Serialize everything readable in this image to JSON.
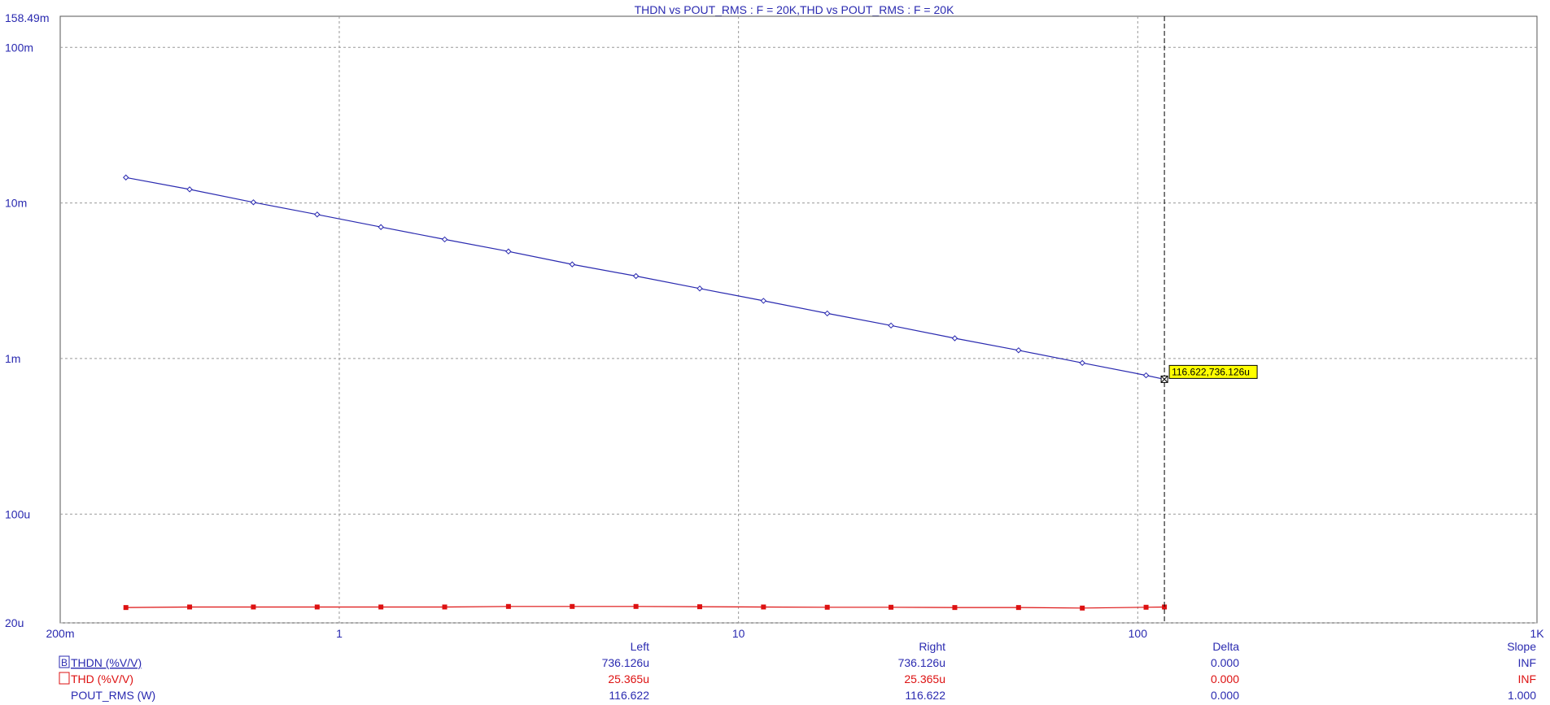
{
  "chart_data": {
    "type": "line",
    "title": "THDN vs POUT_RMS : F = 20K,THD vs POUT_RMS : F = 20K",
    "x_scale": "log",
    "y_scale": "log",
    "xlim": [
      0.2,
      1000
    ],
    "ylim": [
      2e-05,
      0.15849
    ],
    "x_ticks": [
      {
        "value": 0.2,
        "label": "200m"
      },
      {
        "value": 1,
        "label": "1"
      },
      {
        "value": 10,
        "label": "10"
      },
      {
        "value": 100,
        "label": "100"
      },
      {
        "value": 1000,
        "label": "1K"
      }
    ],
    "y_ticks": [
      {
        "value": 2e-05,
        "label": "20u"
      },
      {
        "value": 0.0001,
        "label": "100u"
      },
      {
        "value": 0.001,
        "label": "1m"
      },
      {
        "value": 0.01,
        "label": "10m"
      },
      {
        "value": 0.1,
        "label": "100m"
      }
    ],
    "y_top_label": "158.49m",
    "grid": true,
    "x": [
      0.2921,
      0.4219,
      0.6094,
      0.8803,
      1.2716,
      1.8367,
      2.6531,
      3.8323,
      5.5356,
      7.996,
      11.55,
      16.684,
      24.1,
      34.811,
      50.283,
      72.633,
      104.92,
      116.622
    ],
    "series": [
      {
        "name": "THDN (%V/V)",
        "color": "#2a2ab0",
        "marker": "diamond",
        "values": [
          0.01458,
          0.01223,
          0.0101,
          0.00843,
          0.007,
          0.00583,
          0.00488,
          0.00403,
          0.00339,
          0.00282,
          0.00235,
          0.00195,
          0.00163,
          0.00135,
          0.00113,
          0.000937,
          0.00078,
          0.000736126
        ]
      },
      {
        "name": "THD (%V/V)",
        "color": "#dd1111",
        "marker": "square",
        "values": [
          2.51e-05,
          2.53e-05,
          2.53e-05,
          2.53e-05,
          2.53e-05,
          2.53e-05,
          2.55e-05,
          2.55e-05,
          2.55e-05,
          2.54e-05,
          2.53e-05,
          2.52e-05,
          2.52e-05,
          2.51e-05,
          2.51e-05,
          2.49e-05,
          2.52e-05,
          2.53e-05
        ]
      }
    ],
    "cursor": {
      "x": 116.622,
      "y": 0.000736126,
      "label": "116.622,736.126u"
    }
  },
  "table": {
    "headers": {
      "left": "Left",
      "right": "Right",
      "delta": "Delta",
      "slope": "Slope"
    },
    "rows": [
      {
        "marker": "B",
        "name": "THDN (%V/V)",
        "left": "736.126u",
        "right": "736.126u",
        "delta": "0.000",
        "slope": "INF",
        "color": "#2a2ab0"
      },
      {
        "marker": "",
        "name": "THD (%V/V)",
        "left": "25.365u",
        "right": "25.365u",
        "delta": "0.000",
        "slope": "INF",
        "color": "#dd1111"
      },
      {
        "marker": "",
        "name": "POUT_RMS (W)",
        "left": "116.622",
        "right": "116.622",
        "delta": "0.000",
        "slope": "1.000",
        "color": "#2a2ab0"
      }
    ]
  }
}
